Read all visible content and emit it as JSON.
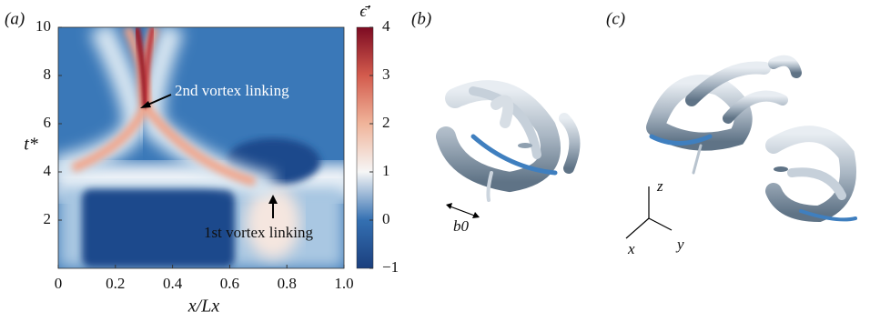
{
  "chart_data": {
    "type": "heatmap",
    "xlabel": "x/Lx",
    "ylabel": "t*",
    "xlim": [
      0,
      1
    ],
    "xticks": [
      0,
      0.2,
      0.4,
      0.6,
      0.8,
      {
        "value": 1,
        "label": "1.0"
      }
    ],
    "ylim": [
      0,
      10
    ],
    "yticks": [
      2,
      4,
      6,
      8,
      10
    ],
    "colorbar": {
      "label": "ϵ̄′",
      "clim": [
        -1,
        4
      ],
      "ticks": [
        {
          "value": -1,
          "label": "−1"
        },
        0,
        1,
        2,
        3,
        4
      ]
    },
    "annotations": [
      "2nd vortex linking",
      "1st vortex linking"
    ]
  },
  "panels": {
    "a": "(a)",
    "b": "(b)",
    "c": "(c)",
    "b_label": "b0",
    "axes": {
      "z": "z",
      "x": "x",
      "y": "y"
    }
  }
}
